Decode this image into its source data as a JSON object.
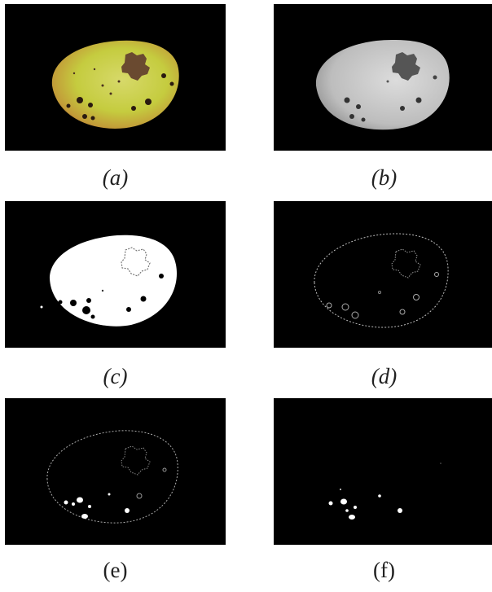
{
  "captions": {
    "a": "(a)",
    "b": "(b)",
    "c": "(c)",
    "d": "(d)",
    "e": "(e)",
    "f": "(f)"
  },
  "colors": {
    "background": "#000000",
    "fruit_green": "#c9cf4a",
    "fruit_red": "#b8643a",
    "spot_brown": "#5a3a2a",
    "gray_fruit": "#c8c8c8",
    "white": "#ffffff"
  }
}
